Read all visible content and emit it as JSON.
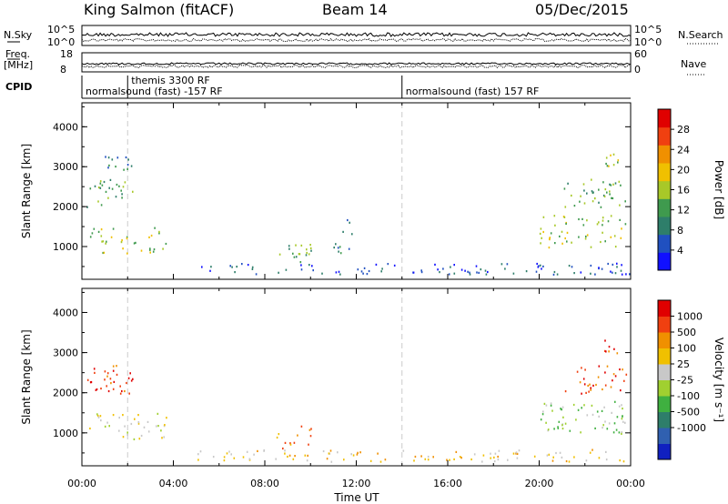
{
  "header": {
    "station": "King Salmon (fitACF)",
    "beam": "Beam 14",
    "date": "05/Dec/2015"
  },
  "left_labels": {
    "nsky": "N.Sky",
    "freq_top": "Freq.",
    "freq_unit": "[MHz]",
    "cpid": "CPID"
  },
  "right_labels": {
    "nsearch": "N.Search",
    "nave": "Nave"
  },
  "noise_ticks": {
    "top": "10^5",
    "bottom": "10^0"
  },
  "freq_ticks": {
    "top": "18",
    "bottom": "8"
  },
  "nave_ticks": {
    "top": "60",
    "bottom": "0"
  },
  "cpid_entries": [
    {
      "label": "themis 3300 RF",
      "x_hour": 2.0
    },
    {
      "label": "normalsound (fast) -157 RF",
      "x_hour": 0.0
    },
    {
      "label": "normalsound (fast) 157 RF",
      "x_hour": 14.0
    }
  ],
  "cpid_boundaries_hours": [
    2.0,
    14.0
  ],
  "chart_data": [
    {
      "type": "heatmap",
      "name": "power",
      "xlabel": "",
      "ylabel": "Slant Range [km]",
      "x_range_hours": [
        0,
        24
      ],
      "ylim": [
        180,
        4600
      ],
      "y_ticks": [
        1000,
        2000,
        3000,
        4000
      ],
      "colorbar": {
        "label": "Power [dB]",
        "range": [
          0,
          32
        ],
        "tick_labels": [
          "4",
          "8",
          "12",
          "16",
          "20",
          "24",
          "28"
        ],
        "tick_values": [
          4,
          8,
          12,
          16,
          20,
          24,
          28
        ],
        "colors": [
          "#1010ff",
          "#2050c0",
          "#2e7e6a",
          "#3f9a4e",
          "#a8c828",
          "#f0c000",
          "#f09000",
          "#f04010",
          "#e00000"
        ]
      },
      "echo_regions": [
        {
          "t0": 0.3,
          "t1": 3.7,
          "r0": 850,
          "r1": 1500,
          "level": 4
        },
        {
          "t0": 0.2,
          "t1": 2.2,
          "r0": 2000,
          "r1": 2700,
          "level": 3
        },
        {
          "t0": 1.0,
          "t1": 2.2,
          "r0": 2900,
          "r1": 3300,
          "level": 2
        },
        {
          "t0": 20.0,
          "t1": 23.8,
          "r0": 1000,
          "r1": 1800,
          "level": 4
        },
        {
          "t0": 21.0,
          "t1": 23.8,
          "r0": 2000,
          "r1": 2700,
          "level": 3
        },
        {
          "t0": 22.8,
          "t1": 23.6,
          "r0": 3000,
          "r1": 3400,
          "level": 4
        },
        {
          "t0": 8.5,
          "t1": 10.0,
          "r0": 600,
          "r1": 1200,
          "level": 3
        },
        {
          "t0": 11.0,
          "t1": 11.8,
          "r0": 800,
          "r1": 1700,
          "level": 2
        },
        {
          "t0": 5.0,
          "t1": 24.0,
          "r0": 300,
          "r1": 600,
          "level": 1
        }
      ]
    },
    {
      "type": "heatmap",
      "name": "velocity",
      "xlabel": "Time UT",
      "ylabel": "Slant Range [km]",
      "x_range_hours": [
        0,
        24
      ],
      "x_tick_labels": [
        "00:00",
        "04:00",
        "08:00",
        "12:00",
        "16:00",
        "20:00",
        "00:00"
      ],
      "x_tick_hours": [
        0,
        4,
        8,
        12,
        16,
        20,
        24
      ],
      "ylim": [
        180,
        4600
      ],
      "y_ticks": [
        1000,
        2000,
        3000,
        4000
      ],
      "colorbar": {
        "label": "Velocity [m s⁻¹]",
        "tick_labels": [
          "1000",
          "500",
          "100",
          "25",
          "-25",
          "-100",
          "-500",
          "-1000"
        ],
        "colors": [
          "#1020c0",
          "#3060b0",
          "#2e7e6a",
          "#3fb040",
          "#a0d030",
          "#c8c8c8",
          "#f0c000",
          "#f09000",
          "#f04010",
          "#e00000"
        ]
      },
      "echo_regions": [
        {
          "t0": 0.3,
          "t1": 3.7,
          "r0": 850,
          "r1": 1500,
          "level": 5
        },
        {
          "t0": 0.2,
          "t1": 2.2,
          "r0": 2000,
          "r1": 2700,
          "level": 8
        },
        {
          "t0": 20.0,
          "t1": 23.8,
          "r0": 1000,
          "r1": 1800,
          "level": 4
        },
        {
          "t0": 21.0,
          "t1": 23.8,
          "r0": 2000,
          "r1": 2700,
          "level": 8
        },
        {
          "t0": 22.8,
          "t1": 23.6,
          "r0": 3000,
          "r1": 3400,
          "level": 8
        },
        {
          "t0": 8.5,
          "t1": 10.0,
          "r0": 600,
          "r1": 1200,
          "level": 7
        },
        {
          "t0": 5.0,
          "t1": 24.0,
          "r0": 300,
          "r1": 600,
          "level": 6
        }
      ]
    }
  ]
}
